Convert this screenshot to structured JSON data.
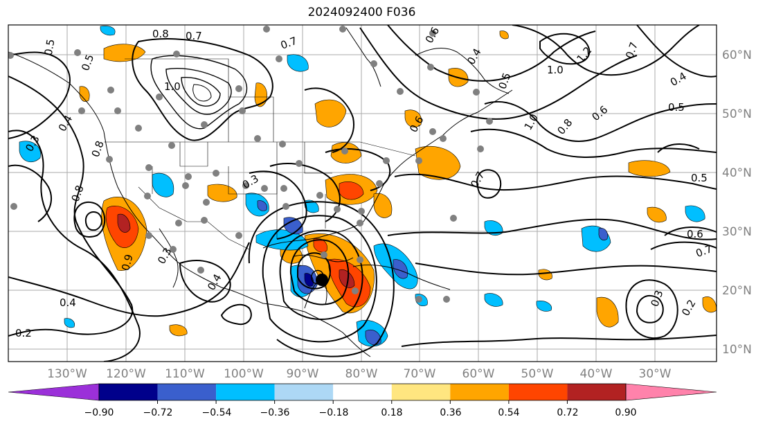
{
  "title": "2024092400 F036",
  "lat_labels": [
    "60°N",
    "50°N",
    "40°N",
    "30°N",
    "20°N",
    "10°N"
  ],
  "lon_labels": [
    "130°W",
    "120°W",
    "110°W",
    "100°W",
    "90°W",
    "80°W",
    "70°W",
    "60°W",
    "50°W",
    "40°W",
    "30°W"
  ],
  "colorbar": {
    "tick_labels": [
      "−0.90",
      "−0.72",
      "−0.54",
      "−0.36",
      "−0.18",
      "0.18",
      "0.36",
      "0.54",
      "0.72",
      "0.90"
    ],
    "colors": [
      "#9b30d9",
      "#00008b",
      "#3a5fcd",
      "#00bfff",
      "#add8f5",
      "#ffffff",
      "#ffe680",
      "#ffa500",
      "#ff4500",
      "#b22222",
      "#ff82ab"
    ]
  },
  "contour_labels": [
    "0.8",
    "0.7",
    "0.5",
    "0.5",
    "0.4",
    "0.3",
    "0.8",
    "0.9",
    "1.0",
    "0.7",
    "0.6",
    "0.4",
    "1.0",
    "1.2",
    "0.7",
    "0.4",
    "0.5",
    "0.6",
    "0.8",
    "1.0",
    "0.5",
    "0.3",
    "0.6",
    "0.7",
    "0.8",
    "0.4",
    "0.3",
    "0.2",
    "0.4",
    "0.5",
    "0.7",
    "0.6",
    "0.3",
    "0.2"
  ],
  "colors": {
    "fill_orange": "#ffa500",
    "fill_redorange": "#ff4500",
    "fill_darkred": "#b22222",
    "fill_lightblue": "#00bfff",
    "fill_blue": "#3a5fcd",
    "fill_navy": "#00008b",
    "dots": "#808080"
  }
}
